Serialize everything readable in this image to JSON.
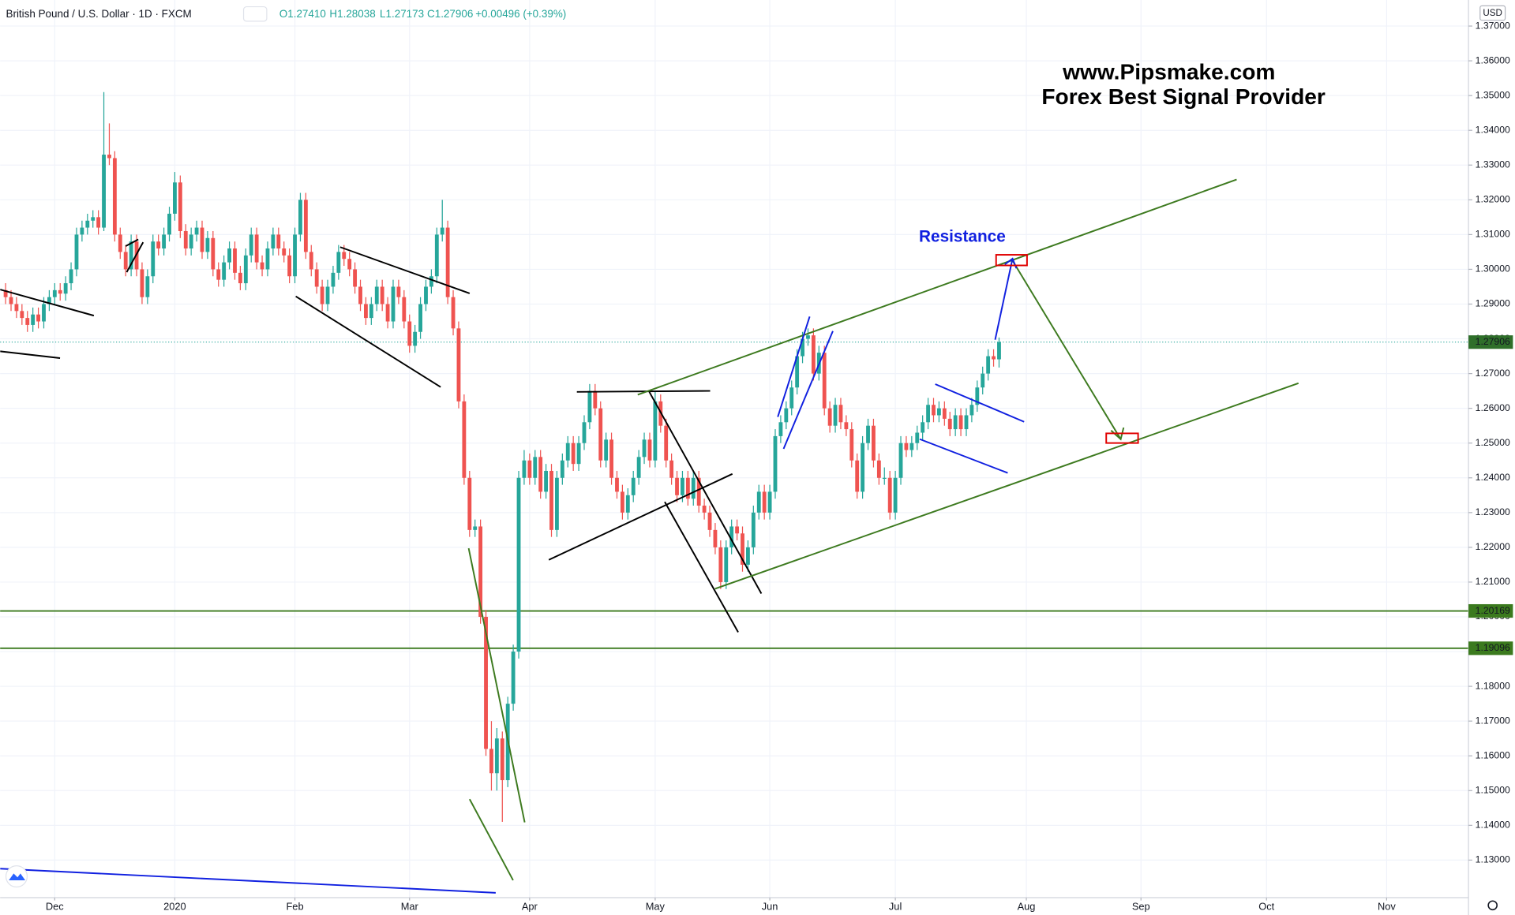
{
  "header": {
    "symbol": "British Pound / U.S. Dollar · 1D · FXCM",
    "open": "O1.27410",
    "high": "H1.28038",
    "low": "L1.27173",
    "close": "C1.27906",
    "change": "+0.00496 (+0.39%)"
  },
  "chart_data": {
    "type": "candlestick",
    "annotations": [
      "www.Pipsmake.com",
      "Forex Best Signal Provider",
      "Resistance"
    ],
    "currency": "USD",
    "up_color": "#26a69a",
    "down_color": "#ef5350",
    "grid": true,
    "xlim": [
      -1,
      268
    ],
    "xticks": [
      {
        "value": 9,
        "label": "Dec"
      },
      {
        "value": 31,
        "label": "2020"
      },
      {
        "value": 53,
        "label": "Feb"
      },
      {
        "value": 74,
        "label": "Mar"
      },
      {
        "value": 96,
        "label": "Apr"
      },
      {
        "value": 119,
        "label": "May"
      },
      {
        "value": 140,
        "label": "Jun"
      },
      {
        "value": 163,
        "label": "Jul"
      },
      {
        "value": 187,
        "label": "Aug"
      },
      {
        "value": 208,
        "label": "Sep"
      },
      {
        "value": 231,
        "label": "Oct"
      },
      {
        "value": 253,
        "label": "Nov"
      }
    ],
    "ylim": [
      1.1192,
      1.3775
    ],
    "yticks": [
      {
        "value": 1.13,
        "label": "1.13000"
      },
      {
        "value": 1.14,
        "label": "1.14000"
      },
      {
        "value": 1.15,
        "label": "1.15000"
      },
      {
        "value": 1.16,
        "label": "1.16000"
      },
      {
        "value": 1.17,
        "label": "1.17000"
      },
      {
        "value": 1.18,
        "label": "1.18000"
      },
      {
        "value": 1.19,
        "label": "1.19000"
      },
      {
        "value": 1.2,
        "label": "1.20000"
      },
      {
        "value": 1.21,
        "label": "1.21000"
      },
      {
        "value": 1.22,
        "label": "1.22000"
      },
      {
        "value": 1.23,
        "label": "1.23000"
      },
      {
        "value": 1.24,
        "label": "1.24000"
      },
      {
        "value": 1.25,
        "label": "1.25000"
      },
      {
        "value": 1.26,
        "label": "1.26000"
      },
      {
        "value": 1.27,
        "label": "1.27000"
      },
      {
        "value": 1.28,
        "label": "1.28000"
      },
      {
        "value": 1.29,
        "label": "1.29000"
      },
      {
        "value": 1.3,
        "label": "1.30000"
      },
      {
        "value": 1.31,
        "label": "1.31000"
      },
      {
        "value": 1.32,
        "label": "1.32000"
      },
      {
        "value": 1.33,
        "label": "1.33000"
      },
      {
        "value": 1.34,
        "label": "1.34000"
      },
      {
        "value": 1.35,
        "label": "1.35000"
      },
      {
        "value": 1.36,
        "label": "1.36000"
      },
      {
        "value": 1.37,
        "label": "1.37000"
      }
    ],
    "price_lines": [
      {
        "value": 1.20169,
        "color": "#3b7a1e"
      },
      {
        "value": 1.19096,
        "color": "#3b7a1e"
      }
    ],
    "candles": [
      [
        1.294,
        1.296,
        1.29,
        1.292
      ],
      [
        1.292,
        1.294,
        1.288,
        1.29
      ],
      [
        1.29,
        1.292,
        1.286,
        1.288
      ],
      [
        1.288,
        1.29,
        1.284,
        1.286
      ],
      [
        1.286,
        1.288,
        1.282,
        1.284
      ],
      [
        1.284,
        1.289,
        1.282,
        1.287
      ],
      [
        1.287,
        1.289,
        1.283,
        1.285
      ],
      [
        1.285,
        1.292,
        1.283,
        1.29
      ],
      [
        1.29,
        1.294,
        1.288,
        1.292
      ],
      [
        1.292,
        1.296,
        1.29,
        1.294
      ],
      [
        1.294,
        1.296,
        1.291,
        1.293
      ],
      [
        1.293,
        1.298,
        1.291,
        1.296
      ],
      [
        1.296,
        1.302,
        1.294,
        1.3
      ],
      [
        1.3,
        1.312,
        1.298,
        1.31
      ],
      [
        1.31,
        1.314,
        1.308,
        1.312
      ],
      [
        1.312,
        1.316,
        1.31,
        1.314
      ],
      [
        1.314,
        1.317,
        1.312,
        1.315
      ],
      [
        1.315,
        1.317,
        1.31,
        1.312
      ],
      [
        1.312,
        1.351,
        1.311,
        1.333
      ],
      [
        1.333,
        1.342,
        1.33,
        1.332
      ],
      [
        1.332,
        1.334,
        1.308,
        1.31
      ],
      [
        1.31,
        1.312,
        1.303,
        1.305
      ],
      [
        1.305,
        1.307,
        1.298,
        1.3
      ],
      [
        1.3,
        1.31,
        1.298,
        1.308
      ],
      [
        1.308,
        1.31,
        1.298,
        1.3
      ],
      [
        1.3,
        1.302,
        1.29,
        1.292
      ],
      [
        1.292,
        1.3,
        1.29,
        1.298
      ],
      [
        1.298,
        1.31,
        1.296,
        1.308
      ],
      [
        1.308,
        1.31,
        1.304,
        1.306
      ],
      [
        1.306,
        1.312,
        1.304,
        1.31
      ],
      [
        1.31,
        1.318,
        1.308,
        1.316
      ],
      [
        1.316,
        1.328,
        1.314,
        1.325
      ],
      [
        1.325,
        1.327,
        1.309,
        1.311
      ],
      [
        1.311,
        1.313,
        1.304,
        1.306
      ],
      [
        1.306,
        1.312,
        1.304,
        1.31
      ],
      [
        1.31,
        1.314,
        1.308,
        1.312
      ],
      [
        1.312,
        1.314,
        1.303,
        1.305
      ],
      [
        1.305,
        1.311,
        1.303,
        1.309
      ],
      [
        1.309,
        1.311,
        1.298,
        1.3
      ],
      [
        1.3,
        1.302,
        1.295,
        1.297
      ],
      [
        1.297,
        1.304,
        1.295,
        1.302
      ],
      [
        1.302,
        1.308,
        1.3,
        1.306
      ],
      [
        1.306,
        1.308,
        1.297,
        1.299
      ],
      [
        1.299,
        1.301,
        1.294,
        1.296
      ],
      [
        1.296,
        1.306,
        1.294,
        1.304
      ],
      [
        1.304,
        1.312,
        1.302,
        1.31
      ],
      [
        1.31,
        1.312,
        1.3,
        1.302
      ],
      [
        1.302,
        1.304,
        1.298,
        1.3
      ],
      [
        1.3,
        1.308,
        1.298,
        1.306
      ],
      [
        1.306,
        1.312,
        1.304,
        1.31
      ],
      [
        1.31,
        1.312,
        1.304,
        1.306
      ],
      [
        1.306,
        1.308,
        1.302,
        1.304
      ],
      [
        1.304,
        1.306,
        1.296,
        1.298
      ],
      [
        1.298,
        1.312,
        1.296,
        1.31
      ],
      [
        1.31,
        1.322,
        1.308,
        1.32
      ],
      [
        1.32,
        1.322,
        1.303,
        1.305
      ],
      [
        1.305,
        1.307,
        1.298,
        1.3
      ],
      [
        1.3,
        1.302,
        1.293,
        1.295
      ],
      [
        1.295,
        1.297,
        1.288,
        1.29
      ],
      [
        1.29,
        1.297,
        1.288,
        1.295
      ],
      [
        1.295,
        1.301,
        1.293,
        1.299
      ],
      [
        1.299,
        1.307,
        1.297,
        1.305
      ],
      [
        1.305,
        1.307,
        1.301,
        1.303
      ],
      [
        1.303,
        1.305,
        1.298,
        1.3
      ],
      [
        1.3,
        1.302,
        1.293,
        1.295
      ],
      [
        1.295,
        1.297,
        1.288,
        1.29
      ],
      [
        1.29,
        1.292,
        1.284,
        1.286
      ],
      [
        1.286,
        1.292,
        1.284,
        1.29
      ],
      [
        1.29,
        1.297,
        1.288,
        1.295
      ],
      [
        1.295,
        1.297,
        1.288,
        1.29
      ],
      [
        1.29,
        1.292,
        1.283,
        1.285
      ],
      [
        1.285,
        1.297,
        1.283,
        1.295
      ],
      [
        1.295,
        1.297,
        1.29,
        1.292
      ],
      [
        1.292,
        1.294,
        1.283,
        1.285
      ],
      [
        1.285,
        1.287,
        1.276,
        1.278
      ],
      [
        1.278,
        1.284,
        1.276,
        1.282
      ],
      [
        1.282,
        1.292,
        1.28,
        1.29
      ],
      [
        1.29,
        1.297,
        1.288,
        1.295
      ],
      [
        1.295,
        1.3,
        1.293,
        1.298
      ],
      [
        1.298,
        1.312,
        1.296,
        1.31
      ],
      [
        1.31,
        1.32,
        1.308,
        1.312
      ],
      [
        1.312,
        1.314,
        1.29,
        1.292
      ],
      [
        1.292,
        1.294,
        1.281,
        1.283
      ],
      [
        1.283,
        1.285,
        1.26,
        1.262
      ],
      [
        1.262,
        1.264,
        1.238,
        1.24
      ],
      [
        1.24,
        1.242,
        1.223,
        1.225
      ],
      [
        1.225,
        1.228,
        1.223,
        1.226
      ],
      [
        1.226,
        1.228,
        1.198,
        1.2
      ],
      [
        1.2,
        1.202,
        1.16,
        1.162
      ],
      [
        1.162,
        1.17,
        1.15,
        1.155
      ],
      [
        1.155,
        1.168,
        1.15,
        1.165
      ],
      [
        1.165,
        1.167,
        1.141,
        1.153
      ],
      [
        1.153,
        1.177,
        1.151,
        1.175
      ],
      [
        1.175,
        1.192,
        1.173,
        1.19
      ],
      [
        1.19,
        1.242,
        1.188,
        1.24
      ],
      [
        1.24,
        1.248,
        1.238,
        1.245
      ],
      [
        1.245,
        1.247,
        1.238,
        1.24
      ],
      [
        1.24,
        1.248,
        1.238,
        1.246
      ],
      [
        1.246,
        1.248,
        1.234,
        1.236
      ],
      [
        1.236,
        1.244,
        1.234,
        1.242
      ],
      [
        1.242,
        1.244,
        1.223,
        1.225
      ],
      [
        1.225,
        1.242,
        1.223,
        1.24
      ],
      [
        1.24,
        1.247,
        1.238,
        1.245
      ],
      [
        1.245,
        1.252,
        1.243,
        1.25
      ],
      [
        1.25,
        1.252,
        1.242,
        1.244
      ],
      [
        1.244,
        1.252,
        1.242,
        1.25
      ],
      [
        1.25,
        1.258,
        1.248,
        1.256
      ],
      [
        1.256,
        1.267,
        1.254,
        1.265
      ],
      [
        1.265,
        1.267,
        1.258,
        1.26
      ],
      [
        1.26,
        1.262,
        1.243,
        1.245
      ],
      [
        1.245,
        1.253,
        1.243,
        1.251
      ],
      [
        1.251,
        1.253,
        1.238,
        1.24
      ],
      [
        1.24,
        1.242,
        1.234,
        1.236
      ],
      [
        1.236,
        1.238,
        1.228,
        1.23
      ],
      [
        1.23,
        1.237,
        1.228,
        1.235
      ],
      [
        1.235,
        1.242,
        1.233,
        1.24
      ],
      [
        1.24,
        1.248,
        1.238,
        1.246
      ],
      [
        1.246,
        1.253,
        1.244,
        1.251
      ],
      [
        1.251,
        1.253,
        1.243,
        1.245
      ],
      [
        1.245,
        1.265,
        1.243,
        1.262
      ],
      [
        1.262,
        1.264,
        1.253,
        1.255
      ],
      [
        1.255,
        1.257,
        1.243,
        1.245
      ],
      [
        1.245,
        1.247,
        1.238,
        1.24
      ],
      [
        1.24,
        1.242,
        1.233,
        1.235
      ],
      [
        1.235,
        1.242,
        1.233,
        1.24
      ],
      [
        1.24,
        1.242,
        1.232,
        1.234
      ],
      [
        1.234,
        1.242,
        1.232,
        1.24
      ],
      [
        1.24,
        1.242,
        1.23,
        1.232
      ],
      [
        1.232,
        1.234,
        1.228,
        1.23
      ],
      [
        1.23,
        1.232,
        1.223,
        1.225
      ],
      [
        1.225,
        1.227,
        1.218,
        1.22
      ],
      [
        1.22,
        1.222,
        1.208,
        1.21
      ],
      [
        1.21,
        1.222,
        1.208,
        1.22
      ],
      [
        1.22,
        1.228,
        1.218,
        1.226
      ],
      [
        1.226,
        1.228,
        1.222,
        1.224
      ],
      [
        1.224,
        1.226,
        1.213,
        1.215
      ],
      [
        1.215,
        1.222,
        1.213,
        1.22
      ],
      [
        1.22,
        1.232,
        1.218,
        1.23
      ],
      [
        1.23,
        1.238,
        1.228,
        1.236
      ],
      [
        1.236,
        1.238,
        1.228,
        1.23
      ],
      [
        1.23,
        1.238,
        1.228,
        1.236
      ],
      [
        1.236,
        1.254,
        1.234,
        1.252
      ],
      [
        1.252,
        1.258,
        1.25,
        1.256
      ],
      [
        1.256,
        1.262,
        1.254,
        1.26
      ],
      [
        1.26,
        1.268,
        1.258,
        1.266
      ],
      [
        1.266,
        1.277,
        1.264,
        1.275
      ],
      [
        1.275,
        1.282,
        1.273,
        1.28
      ],
      [
        1.28,
        1.283,
        1.278,
        1.281
      ],
      [
        1.281,
        1.283,
        1.268,
        1.27
      ],
      [
        1.27,
        1.278,
        1.268,
        1.276
      ],
      [
        1.276,
        1.278,
        1.258,
        1.26
      ],
      [
        1.26,
        1.262,
        1.253,
        1.255
      ],
      [
        1.255,
        1.263,
        1.253,
        1.261
      ],
      [
        1.261,
        1.263,
        1.254,
        1.256
      ],
      [
        1.256,
        1.258,
        1.252,
        1.254
      ],
      [
        1.254,
        1.256,
        1.243,
        1.245
      ],
      [
        1.245,
        1.247,
        1.234,
        1.236
      ],
      [
        1.236,
        1.252,
        1.234,
        1.25
      ],
      [
        1.25,
        1.257,
        1.248,
        1.255
      ],
      [
        1.255,
        1.257,
        1.243,
        1.245
      ],
      [
        1.245,
        1.247,
        1.238,
        1.24
      ],
      [
        1.24,
        1.243,
        1.238,
        1.24
      ],
      [
        1.24,
        1.242,
        1.228,
        1.23
      ],
      [
        1.23,
        1.242,
        1.228,
        1.24
      ],
      [
        1.24,
        1.252,
        1.238,
        1.25
      ],
      [
        1.25,
        1.252,
        1.246,
        1.248
      ],
      [
        1.248,
        1.252,
        1.246,
        1.25
      ],
      [
        1.25,
        1.255,
        1.248,
        1.253
      ],
      [
        1.253,
        1.258,
        1.251,
        1.256
      ],
      [
        1.256,
        1.263,
        1.254,
        1.261
      ],
      [
        1.261,
        1.263,
        1.256,
        1.258
      ],
      [
        1.258,
        1.262,
        1.256,
        1.26
      ],
      [
        1.26,
        1.262,
        1.255,
        1.257
      ],
      [
        1.257,
        1.259,
        1.252,
        1.254
      ],
      [
        1.254,
        1.26,
        1.252,
        1.258
      ],
      [
        1.258,
        1.26,
        1.252,
        1.254
      ],
      [
        1.254,
        1.26,
        1.252,
        1.258
      ],
      [
        1.258,
        1.263,
        1.256,
        1.261
      ],
      [
        1.261,
        1.268,
        1.259,
        1.266
      ],
      [
        1.266,
        1.272,
        1.264,
        1.27
      ],
      [
        1.27,
        1.277,
        1.268,
        1.275
      ],
      [
        1.275,
        1.277,
        1.272,
        1.2741
      ],
      [
        1.2741,
        1.28038,
        1.27173,
        1.27906
      ]
    ]
  }
}
